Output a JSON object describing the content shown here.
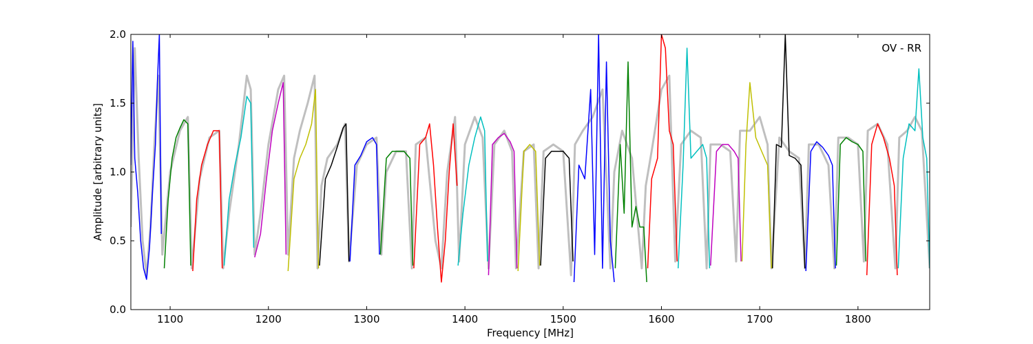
{
  "chart_data": {
    "type": "line",
    "title": "",
    "annotation": "OV - RR",
    "xlabel": "Frequency [MHz]",
    "ylabel": "Amplitude [arbitrary units]",
    "xlim": [
      1060,
      1873
    ],
    "ylim": [
      0.0,
      2.0
    ],
    "xticks": [
      1100,
      1200,
      1300,
      1400,
      1500,
      1600,
      1700,
      1800
    ],
    "yticks": [
      0.0,
      0.5,
      1.0,
      1.5,
      2.0
    ],
    "xtick_labels": [
      "1100",
      "1200",
      "1300",
      "1400",
      "1500",
      "1600",
      "1700",
      "1800"
    ],
    "ytick_labels": [
      "0.0",
      "0.5",
      "1.0",
      "1.5",
      "2.0"
    ],
    "grid": false,
    "legend": "none",
    "background_series": {
      "color": "#bfbfbf",
      "x": [
        1060,
        1064,
        1068,
        1072,
        1076,
        1080,
        1084,
        1088,
        1092,
        1100,
        1110,
        1118,
        1122,
        1130,
        1140,
        1150,
        1154,
        1160,
        1170,
        1178,
        1182,
        1186,
        1192,
        1200,
        1210,
        1216,
        1220,
        1226,
        1232,
        1240,
        1247,
        1250,
        1254,
        1260,
        1270,
        1278,
        1282,
        1290,
        1300,
        1310,
        1315,
        1320,
        1330,
        1340,
        1346,
        1350,
        1360,
        1370,
        1376,
        1382,
        1390,
        1394,
        1400,
        1410,
        1418,
        1424,
        1430,
        1440,
        1448,
        1452,
        1460,
        1470,
        1475,
        1480,
        1490,
        1500,
        1508,
        1512,
        1520,
        1530,
        1540,
        1548,
        1552,
        1560,
        1570,
        1580,
        1584,
        1590,
        1600,
        1608,
        1614,
        1620,
        1630,
        1640,
        1646,
        1650,
        1660,
        1670,
        1676,
        1680,
        1690,
        1700,
        1708,
        1712,
        1720,
        1730,
        1740,
        1746,
        1750,
        1760,
        1770,
        1776,
        1780,
        1790,
        1800,
        1806,
        1810,
        1820,
        1830,
        1838,
        1842,
        1850,
        1858,
        1865,
        1873
      ],
      "values": [
        0.6,
        1.9,
        1.1,
        0.5,
        0.25,
        0.6,
        1.2,
        1.7,
        0.4,
        1.0,
        1.3,
        1.4,
        0.3,
        0.95,
        1.25,
        1.3,
        0.3,
        0.7,
        1.2,
        1.7,
        1.6,
        0.4,
        0.7,
        1.2,
        1.6,
        1.7,
        0.4,
        1.1,
        1.3,
        1.5,
        1.7,
        0.3,
        0.9,
        1.1,
        1.2,
        1.35,
        0.35,
        1.05,
        1.2,
        1.25,
        0.4,
        1.0,
        1.15,
        1.15,
        0.3,
        1.2,
        1.25,
        0.5,
        0.3,
        1.0,
        1.4,
        0.35,
        1.2,
        1.4,
        1.25,
        0.3,
        1.2,
        1.3,
        1.15,
        0.3,
        1.15,
        1.2,
        0.3,
        1.15,
        1.2,
        1.15,
        0.25,
        1.2,
        1.3,
        1.4,
        1.6,
        0.3,
        1.0,
        1.3,
        1.1,
        0.3,
        0.9,
        1.15,
        1.6,
        1.7,
        0.35,
        1.2,
        1.3,
        1.25,
        0.3,
        1.2,
        1.2,
        1.15,
        0.35,
        1.3,
        1.3,
        1.4,
        1.2,
        0.3,
        1.25,
        1.15,
        1.1,
        0.3,
        1.2,
        1.2,
        1.05,
        0.3,
        1.25,
        1.25,
        1.2,
        0.35,
        1.3,
        1.35,
        1.2,
        0.3,
        1.25,
        1.3,
        1.4,
        1.3,
        0.3
      ]
    },
    "series": [
      {
        "color": "#0000ff",
        "x": [
          1060,
          1062,
          1064,
          1067,
          1070,
          1073,
          1076,
          1079,
          1082,
          1085,
          1087,
          1089,
          1091
        ],
        "values": [
          1.05,
          1.95,
          1.1,
          0.85,
          0.5,
          0.3,
          0.22,
          0.45,
          0.85,
          1.2,
          1.65,
          2.0,
          0.55
        ]
      },
      {
        "color": "#008000",
        "x": [
          1094,
          1098,
          1102,
          1106,
          1110,
          1114,
          1118,
          1121
        ],
        "values": [
          0.3,
          0.8,
          1.1,
          1.25,
          1.32,
          1.38,
          1.35,
          0.32
        ]
      },
      {
        "color": "#ff0000",
        "x": [
          1123,
          1127,
          1132,
          1138,
          1144,
          1150,
          1153
        ],
        "values": [
          0.28,
          0.8,
          1.05,
          1.2,
          1.3,
          1.3,
          0.3
        ]
      },
      {
        "color": "#00bfbf",
        "x": [
          1155,
          1160,
          1166,
          1172,
          1178,
          1182,
          1185
        ],
        "values": [
          0.32,
          0.8,
          1.05,
          1.25,
          1.55,
          1.5,
          0.45
        ]
      },
      {
        "color": "#bf00bf",
        "x": [
          1186,
          1192,
          1198,
          1204,
          1210,
          1215,
          1218
        ],
        "values": [
          0.38,
          0.55,
          0.95,
          1.3,
          1.5,
          1.65,
          0.4
        ]
      },
      {
        "color": "#bfbf00",
        "x": [
          1220,
          1226,
          1232,
          1238,
          1244,
          1248,
          1251
        ],
        "values": [
          0.28,
          0.95,
          1.1,
          1.2,
          1.35,
          1.6,
          0.3
        ]
      },
      {
        "color": "#000000",
        "x": [
          1252,
          1258,
          1264,
          1270,
          1276,
          1279,
          1282
        ],
        "values": [
          0.32,
          0.95,
          1.05,
          1.18,
          1.32,
          1.35,
          0.35
        ]
      },
      {
        "color": "#0000ff",
        "x": [
          1283,
          1288,
          1294,
          1300,
          1306,
          1310,
          1313
        ],
        "values": [
          0.35,
          1.05,
          1.12,
          1.22,
          1.25,
          1.2,
          0.4
        ]
      },
      {
        "color": "#008000",
        "x": [
          1314,
          1320,
          1326,
          1332,
          1338,
          1344,
          1347
        ],
        "values": [
          0.4,
          1.1,
          1.15,
          1.15,
          1.15,
          1.1,
          0.32
        ]
      },
      {
        "color": "#ff0000",
        "x": [
          1348,
          1354,
          1360,
          1364,
          1368,
          1372,
          1376,
          1380,
          1384,
          1388,
          1392
        ],
        "values": [
          0.3,
          1.2,
          1.25,
          1.35,
          1.05,
          0.6,
          0.2,
          0.5,
          1.0,
          1.35,
          0.9
        ]
      },
      {
        "color": "#00bfbf",
        "x": [
          1393,
          1398,
          1404,
          1410,
          1416,
          1420,
          1423
        ],
        "values": [
          0.32,
          0.7,
          1.05,
          1.25,
          1.4,
          1.3,
          0.35
        ]
      },
      {
        "color": "#bf00bf",
        "x": [
          1424,
          1428,
          1434,
          1440,
          1446,
          1450,
          1453
        ],
        "values": [
          0.25,
          1.2,
          1.25,
          1.28,
          1.22,
          1.15,
          0.3
        ]
      },
      {
        "color": "#bfbf00",
        "x": [
          1454,
          1460,
          1466,
          1472,
          1476
        ],
        "values": [
          0.28,
          1.15,
          1.2,
          1.15,
          0.32
        ]
      },
      {
        "color": "#000000",
        "x": [
          1477,
          1482,
          1488,
          1494,
          1500,
          1506,
          1510
        ],
        "values": [
          0.32,
          1.1,
          1.15,
          1.15,
          1.15,
          1.1,
          0.35
        ]
      },
      {
        "color": "#0000ff",
        "x": [
          1511,
          1516,
          1522,
          1528,
          1532,
          1536,
          1540,
          1544,
          1548,
          1552
        ],
        "values": [
          0.2,
          1.05,
          0.95,
          1.6,
          0.4,
          2.0,
          0.3,
          1.8,
          0.5,
          0.2
        ]
      },
      {
        "color": "#008000",
        "x": [
          1553,
          1558,
          1562,
          1566,
          1570,
          1574,
          1578,
          1582,
          1585
        ],
        "values": [
          0.3,
          1.2,
          0.7,
          1.8,
          0.6,
          0.75,
          0.6,
          0.6,
          0.2
        ]
      },
      {
        "color": "#ff0000",
        "x": [
          1586,
          1590,
          1596,
          1600,
          1604,
          1608,
          1612,
          1616
        ],
        "values": [
          0.3,
          0.95,
          1.1,
          2.0,
          1.9,
          1.3,
          1.2,
          0.35
        ]
      },
      {
        "color": "#00bfbf",
        "x": [
          1617,
          1622,
          1626,
          1630,
          1636,
          1642,
          1646,
          1649
        ],
        "values": [
          0.3,
          1.05,
          1.9,
          1.1,
          1.15,
          1.2,
          1.1,
          0.3
        ]
      },
      {
        "color": "#bf00bf",
        "x": [
          1650,
          1656,
          1662,
          1668,
          1674,
          1678,
          1681
        ],
        "values": [
          0.32,
          1.15,
          1.2,
          1.2,
          1.15,
          1.1,
          0.35
        ]
      },
      {
        "color": "#bfbf00",
        "x": [
          1682,
          1686,
          1690,
          1696,
          1702,
          1708,
          1712
        ],
        "values": [
          0.35,
          1.2,
          1.65,
          1.25,
          1.15,
          1.05,
          0.3
        ]
      },
      {
        "color": "#000000",
        "x": [
          1713,
          1717,
          1722,
          1726,
          1730,
          1736,
          1742,
          1746
        ],
        "values": [
          0.3,
          1.2,
          1.18,
          2.0,
          1.12,
          1.1,
          1.05,
          0.3
        ]
      },
      {
        "color": "#0000ff",
        "x": [
          1747,
          1752,
          1758,
          1764,
          1770,
          1774,
          1777
        ],
        "values": [
          0.28,
          1.15,
          1.22,
          1.18,
          1.12,
          1.05,
          0.3
        ]
      },
      {
        "color": "#008000",
        "x": [
          1778,
          1782,
          1788,
          1794,
          1800,
          1805,
          1808
        ],
        "values": [
          0.32,
          1.2,
          1.25,
          1.22,
          1.2,
          1.15,
          0.35
        ]
      },
      {
        "color": "#ff0000",
        "x": [
          1809,
          1814,
          1820,
          1826,
          1832,
          1837,
          1840
        ],
        "values": [
          0.25,
          1.2,
          1.35,
          1.25,
          1.1,
          0.9,
          0.25
        ]
      },
      {
        "color": "#00bfbf",
        "x": [
          1841,
          1846,
          1852,
          1858,
          1862,
          1866,
          1870,
          1873
        ],
        "values": [
          0.3,
          1.1,
          1.35,
          1.3,
          1.75,
          1.25,
          1.1,
          0.3
        ]
      }
    ]
  }
}
